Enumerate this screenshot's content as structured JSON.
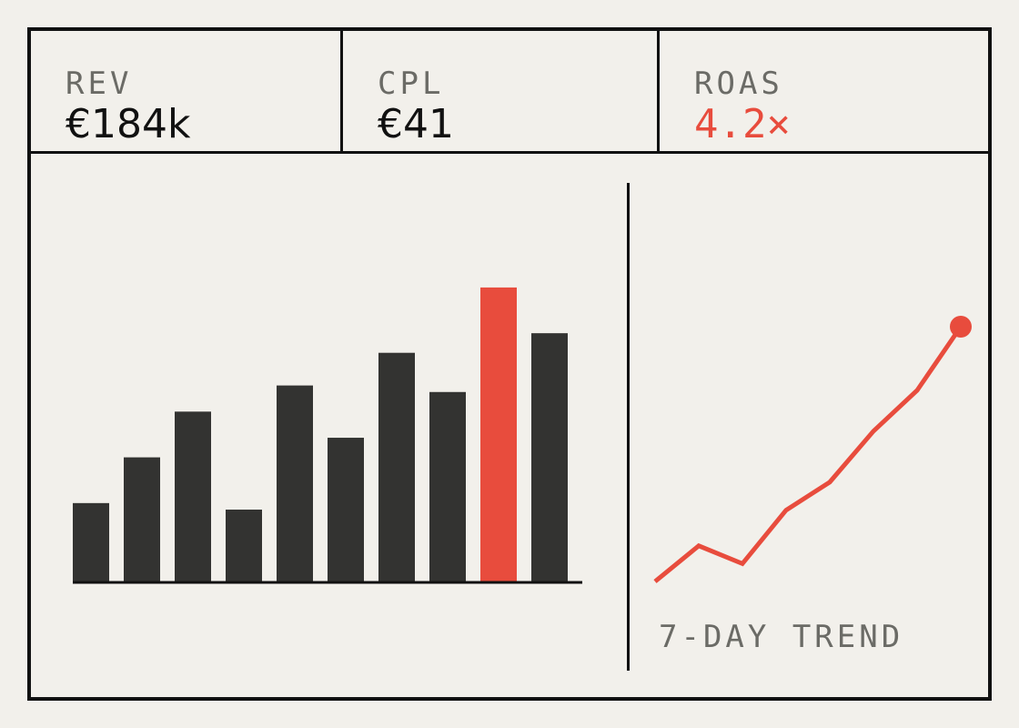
{
  "kpis": [
    {
      "label": "REV",
      "value": "€184k"
    },
    {
      "label": "CPL",
      "value": "€41"
    },
    {
      "label": "ROAS",
      "value": "4.2×"
    }
  ],
  "trend_label": "7-DAY TREND",
  "colors": {
    "background": "#f2f0eb",
    "ink": "#111111",
    "bar": "#333331",
    "accent": "#e84c3d",
    "muted": "#6b6b66"
  },
  "chart_data": [
    {
      "type": "bar",
      "title": "",
      "xlabel": "",
      "ylabel": "",
      "ylim": [
        0,
        100
      ],
      "values": [
        24,
        38,
        52,
        22,
        60,
        44,
        70,
        58,
        90,
        76
      ],
      "highlight_index": 8,
      "grid": false,
      "axis_labels_shown": false
    },
    {
      "type": "line",
      "title": "7-DAY TREND",
      "xlabel": "",
      "ylabel": "",
      "ylim": [
        0,
        100
      ],
      "values": [
        0,
        14,
        7,
        28,
        39,
        59,
        75,
        100
      ],
      "end_marker": true,
      "grid": false,
      "axis_labels_shown": false
    }
  ]
}
